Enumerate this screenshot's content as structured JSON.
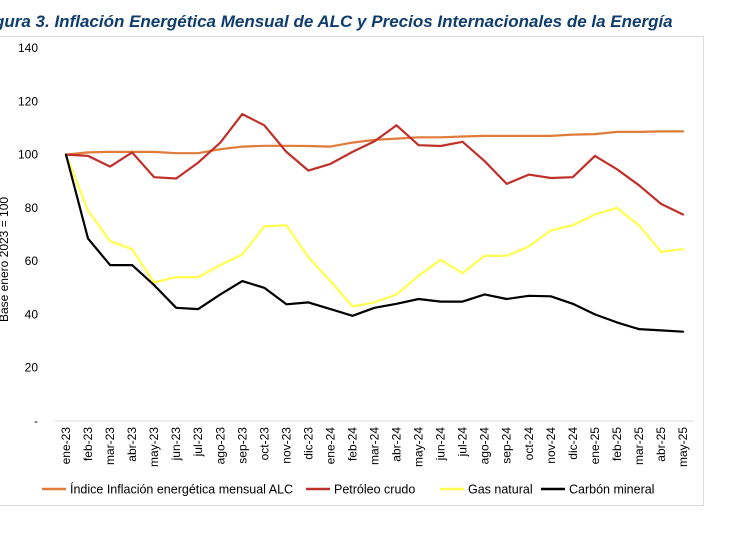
{
  "chart_data": {
    "type": "line",
    "title": "gura 3. Inflación Energética Mensual de ALC y Precios Internacionales de la Energía",
    "ylabel": "Base enero 2023 = 100",
    "xlabel": "",
    "ylim": [
      0,
      140
    ],
    "yticks": [
      "-",
      "20",
      "40",
      "60",
      "80",
      "100",
      "120",
      "140"
    ],
    "categories": [
      "ene-23",
      "feb-23",
      "mar-23",
      "abr-23",
      "may-23",
      "jun-23",
      "jul-23",
      "ago-23",
      "sep-23",
      "oct-23",
      "nov-23",
      "dic-23",
      "ene-24",
      "feb-24",
      "mar-24",
      "abr-24",
      "may-24",
      "jun-24",
      "jul-24",
      "ago-24",
      "sep-24",
      "oct-24",
      "nov-24",
      "dic-24",
      "ene-25",
      "feb-25",
      "mar-25",
      "abr-25",
      "may-25"
    ],
    "grid": false,
    "legend_position": "bottom",
    "series": [
      {
        "name": "Índice Inflación energética mensual ALC",
        "color": "#e07b39",
        "values": [
          100,
          100.8,
          101,
          101,
          101,
          100.5,
          100.5,
          102,
          103,
          103.3,
          103.3,
          103.2,
          103,
          104.5,
          105.5,
          106,
          106.5,
          106.5,
          106.8,
          107,
          107,
          107,
          107,
          107.5,
          107.7,
          108.5,
          108.5,
          108.7,
          108.7
        ]
      },
      {
        "name": "Petróleo crudo",
        "color": "#c0302a",
        "values": [
          100,
          99.5,
          95.5,
          100.8,
          91.5,
          91,
          97,
          104.5,
          115.2,
          111,
          101,
          94,
          96.5,
          101,
          105,
          111,
          103.5,
          103.2,
          104.8,
          97.5,
          89,
          92.5,
          91.2,
          91.5,
          99.5,
          94.5,
          88.5,
          81.5,
          77.5
        ]
      },
      {
        "name": "Gas natural",
        "color": "#ffff4d",
        "values": [
          100,
          79,
          67.5,
          64.5,
          52,
          54,
          54,
          58.5,
          62.5,
          73,
          73.5,
          61.5,
          52.5,
          43,
          44.5,
          47.5,
          54.5,
          60.5,
          55.5,
          62,
          62,
          65.5,
          71.5,
          73.5,
          77.5,
          80,
          73.5,
          63.5,
          64.5
        ]
      },
      {
        "name": "Carbón mineral",
        "color": "#000000",
        "values": [
          100,
          68.5,
          58.5,
          58.5,
          51,
          42.5,
          42,
          47.5,
          52.5,
          50,
          43.8,
          44.5,
          42,
          39.5,
          42.5,
          44,
          45.8,
          44.8,
          44.8,
          47.5,
          45.8,
          47,
          46.8,
          44,
          40,
          37,
          34.5,
          34,
          33.5
        ]
      }
    ]
  }
}
